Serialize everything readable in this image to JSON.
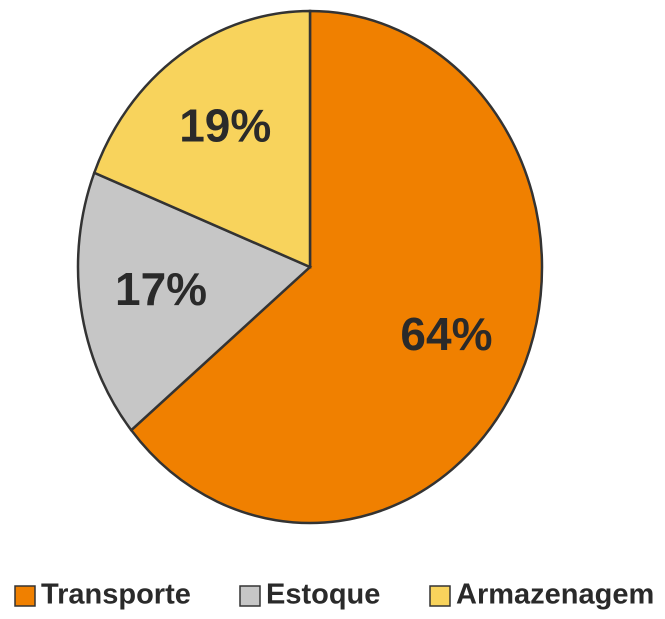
{
  "chart_data": {
    "type": "pie",
    "categories": [
      "Transporte",
      "Estoque",
      "Armazenagem"
    ],
    "values": [
      64,
      17,
      19
    ],
    "value_labels": [
      "64%",
      "17%",
      "19%"
    ],
    "colors": [
      "#f08000",
      "#c6c6c6",
      "#f8d35c"
    ],
    "legend": "bottom"
  }
}
